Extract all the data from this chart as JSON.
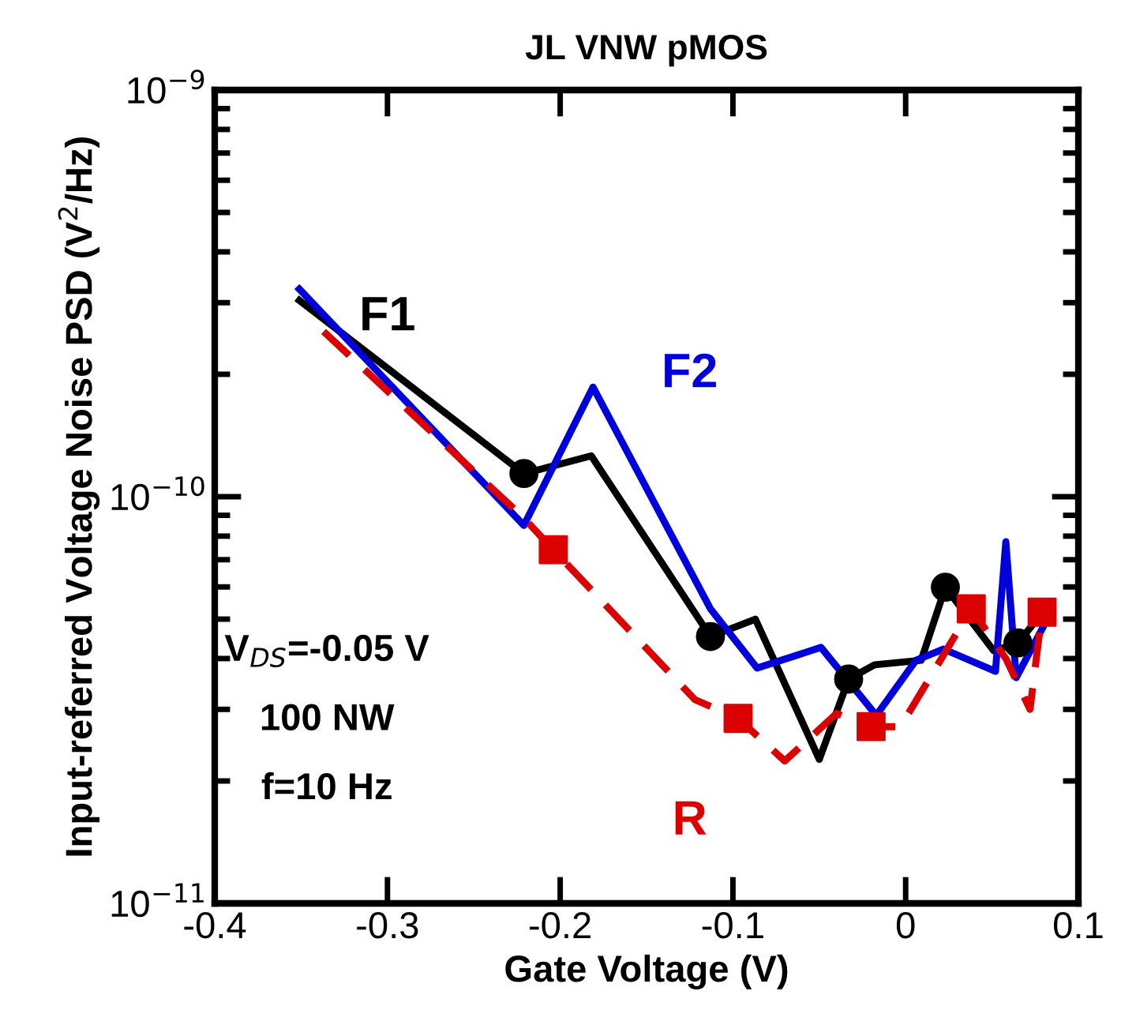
{
  "chart_data": {
    "type": "line",
    "title": "JL VNW pMOS",
    "xlabel": "Gate Voltage (V)",
    "ylabel": "Input-referred Voltage Noise PSD (V$^{2}$/Hz)",
    "log": "y",
    "xlim": [
      -0.4,
      0.1
    ],
    "xticks": [
      -0.4,
      -0.3,
      -0.2,
      -0.1,
      0,
      0.1
    ],
    "ylim": [
      1e-11,
      1e-09
    ],
    "yticks": [
      {
        "value": 1e-11,
        "label": "10$^{−11}$"
      },
      {
        "value": 1e-10,
        "label": "10$^{−10}$"
      },
      {
        "value": 1e-09,
        "label": "10$^{−9}$"
      }
    ],
    "grid": false,
    "legend": false,
    "series": [
      {
        "name": "F1",
        "color": "#000000",
        "line_style": "solid",
        "x": [
          -0.351,
          -0.221,
          -0.182,
          -0.113,
          -0.087,
          -0.05,
          -0.033,
          -0.018,
          0.009,
          0.023,
          0.051,
          0.065,
          0.074
        ],
        "values": [
          3.04e-10,
          1.14e-10,
          1.26e-10,
          4.53e-11,
          5e-11,
          2.26e-11,
          3.56e-11,
          3.86e-11,
          3.96e-11,
          5.99e-11,
          4.18e-11,
          4.37e-11,
          4.87e-11
        ]
      },
      {
        "name": "F2",
        "color": "#0000dd",
        "line_style": "solid",
        "x": [
          -0.351,
          -0.221,
          -0.181,
          -0.113,
          -0.086,
          -0.049,
          -0.017,
          0.006,
          0.022,
          0.052,
          0.058,
          0.064,
          0.08
        ],
        "values": [
          3.24e-10,
          8.5e-11,
          1.86e-10,
          5.3e-11,
          3.79e-11,
          4.26e-11,
          2.9e-11,
          3.96e-11,
          4.22e-11,
          3.72e-11,
          7.75e-11,
          3.59e-11,
          4.82e-11
        ]
      },
      {
        "name": "R",
        "color": "#dd0000",
        "line_style": "dashed",
        "x": [
          -0.337,
          -0.221,
          -0.204,
          -0.122,
          -0.097,
          -0.07,
          -0.04,
          -0.02,
          -0.003,
          0.038,
          0.058,
          0.072,
          0.079
        ],
        "values": [
          2.55e-10,
          8.86e-11,
          7.41e-11,
          3.17e-11,
          2.85e-11,
          2.24e-11,
          2.93e-11,
          2.72e-11,
          2.72e-11,
          5.3e-11,
          4e-11,
          3e-11,
          5.2e-11
        ]
      },
      {
        "type": "scatter",
        "color": "#000000",
        "marker": "circle",
        "x": [
          -0.221,
          -0.113,
          -0.033,
          0.023,
          0.065
        ],
        "values": [
          1.14e-10,
          4.53e-11,
          3.56e-11,
          5.99e-11,
          4.37e-11
        ]
      },
      {
        "type": "scatter",
        "color": "#dd0000",
        "marker": "square",
        "x": [
          -0.204,
          -0.097,
          -0.02,
          0.038,
          0.079
        ],
        "values": [
          7.41e-11,
          2.85e-11,
          2.72e-11,
          5.3e-11,
          5.2e-11
        ]
      }
    ],
    "annotations": [
      "V$_{DS}$=-0.05 V",
      "100 NW",
      "f=10 Hz"
    ]
  }
}
